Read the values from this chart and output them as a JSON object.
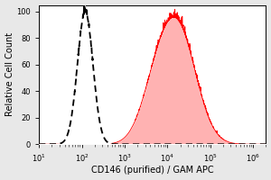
{
  "xlabel": "CD146 (purified) / GAM APC",
  "ylabel": "Relative Cell Count",
  "xlim": [
    30,
    2000000
  ],
  "ylim": [
    0,
    105
  ],
  "yticks": [
    0,
    20,
    40,
    60,
    80,
    100
  ],
  "background_color": "#e8e8e8",
  "plot_bg": "#ffffff",
  "huvec_color": "#ff0000",
  "huvec_fill": "#ffaaaa",
  "t3t_color": "#000000",
  "huvec_peak_log": 4.25,
  "huvec_sigma_log": 0.42,
  "t3t_peak_log": 2.08,
  "t3t_sigma_log": 0.18,
  "huvec_amplitude": 85,
  "t3t_amplitude": 100,
  "font_size": 7,
  "label_fontsize": 7,
  "tick_fontsize": 6
}
